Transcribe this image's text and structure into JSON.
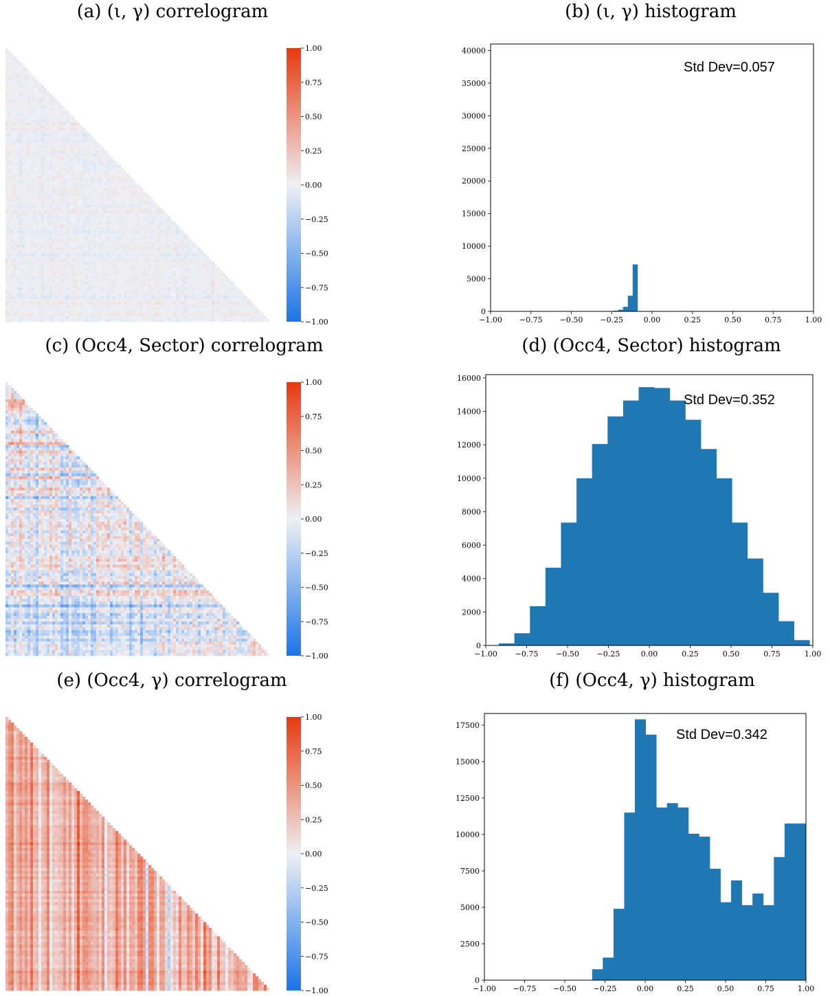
{
  "captions": {
    "a": "(a) (ι, γ) correlogram",
    "b": "(b) (ι, γ) histogram",
    "c": "(c) (Occ4, Sector) correlogram",
    "d": "(d) (Occ4, Sector) histogram",
    "e": "(e) (Occ4, γ) correlogram",
    "f": "(f) (Occ4, γ) histogram"
  },
  "colorbar": {
    "ticks": [
      "1.00",
      "0.75",
      "0.50",
      "0.25",
      "0.00",
      "−0.25",
      "−0.50",
      "−0.75",
      "−1.00"
    ],
    "colors": {
      "neg": "#1a74e8",
      "mid": "#eef0f4",
      "pos": "#e8380d"
    }
  },
  "colors": {
    "bar": "#1f77b4"
  },
  "chart_data": [
    {
      "type": "heatmap",
      "title": "(a) (ι, γ) correlogram",
      "shape": "lower-triangle",
      "vmin": -1.0,
      "vmax": 1.0,
      "approx_mean": 0.0,
      "approx_spread": 0.057
    },
    {
      "type": "bar",
      "title": "(b) (ι, γ) histogram",
      "annotation": "Std Dev=0.057",
      "xlim": [
        -1.0,
        1.0
      ],
      "ylim": [
        0,
        41000
      ],
      "xticks": [
        "−1.00",
        "−0.75",
        "−0.50",
        "−0.25",
        "0.00",
        "0.25",
        "0.50",
        "0.75",
        "1.00"
      ],
      "yticks": [
        "0",
        "5000",
        "10000",
        "15000",
        "20000",
        "25000",
        "30000",
        "35000",
        "40000"
      ],
      "ytick_values": [
        0,
        5000,
        10000,
        15000,
        20000,
        25000,
        30000,
        35000,
        40000
      ],
      "bin_edges": [
        -0.3,
        -0.27,
        -0.24,
        -0.21,
        -0.18,
        -0.15,
        -0.12,
        -0.09,
        -0.06,
        -0.03,
        0.0,
        0.03,
        0.06,
        0.09,
        0.12,
        0.15,
        0.18,
        0.21,
        0.24,
        0.27,
        0.3,
        0.33,
        0.36,
        0.39
      ],
      "values": [
        10,
        40,
        100,
        250,
        700,
        2400,
        7200,
        0,
        0,
        0,
        0,
        0,
        0,
        0,
        0,
        0,
        0,
        0,
        0,
        0,
        0,
        0,
        0
      ]
    },
    {
      "type": "heatmap",
      "title": "(c) (Occ4, Sector) correlogram",
      "shape": "lower-triangle",
      "vmin": -1.0,
      "vmax": 1.0,
      "approx_mean": 0.0,
      "approx_spread": 0.352
    },
    {
      "type": "bar",
      "title": "(d) (Occ4, Sector) histogram",
      "annotation": "Std Dev=0.352",
      "xlim": [
        -1.0,
        1.0
      ],
      "ylim": [
        0,
        16200
      ],
      "xticks": [
        "−1.00",
        "−0.75",
        "−0.50",
        "−0.25",
        "0.00",
        "0.25",
        "0.50",
        "0.75",
        "1.00"
      ],
      "yticks": [
        "0",
        "2000",
        "4000",
        "6000",
        "8000",
        "10000",
        "12000",
        "14000",
        "16000"
      ],
      "ytick_values": [
        0,
        2000,
        4000,
        6000,
        8000,
        10000,
        12000,
        14000,
        16000
      ],
      "bin_edges": [
        -0.92,
        -0.825,
        -0.73,
        -0.635,
        -0.54,
        -0.445,
        -0.35,
        -0.255,
        -0.16,
        -0.065,
        0.03,
        0.125,
        0.22,
        0.315,
        0.41,
        0.505,
        0.6,
        0.695,
        0.79,
        0.885,
        0.98
      ],
      "values": [
        120,
        730,
        2350,
        4650,
        7350,
        10000,
        12050,
        13700,
        14650,
        15450,
        15400,
        14650,
        13500,
        11750,
        10000,
        7350,
        5200,
        3150,
        1450,
        320
      ]
    },
    {
      "type": "heatmap",
      "title": "(e) (Occ4, γ) correlogram",
      "shape": "lower-triangle",
      "vmin": -1.0,
      "vmax": 1.0,
      "approx_mean": 0.36,
      "approx_spread": 0.342
    },
    {
      "type": "bar",
      "title": "(f) (Occ4, γ) histogram",
      "annotation": "Std Dev=0.342",
      "xlim": [
        -1.0,
        1.0
      ],
      "ylim": [
        0,
        18300
      ],
      "xticks": [
        "−1.00",
        "−0.75",
        "−0.50",
        "−0.25",
        "0.00",
        "0.25",
        "0.50",
        "0.75",
        "1.00"
      ],
      "yticks": [
        "0",
        "2500",
        "5000",
        "7500",
        "10000",
        "12500",
        "15000",
        "17500"
      ],
      "ytick_values": [
        0,
        2500,
        5000,
        7500,
        10000,
        12500,
        15000,
        17500
      ],
      "bin_edges": [
        -0.33,
        -0.2635,
        -0.197,
        -0.1305,
        -0.064,
        0.0025,
        0.069,
        0.1355,
        0.202,
        0.2685,
        0.335,
        0.4015,
        0.468,
        0.5345,
        0.601,
        0.6675,
        0.734,
        0.8005,
        0.867,
        0.9335,
        1.0
      ],
      "values": [
        750,
        1550,
        4900,
        11500,
        17900,
        16850,
        11850,
        12150,
        11850,
        10050,
        9850,
        7650,
        5350,
        6850,
        5150,
        5950,
        5150,
        8450,
        10750,
        10750
      ]
    }
  ]
}
